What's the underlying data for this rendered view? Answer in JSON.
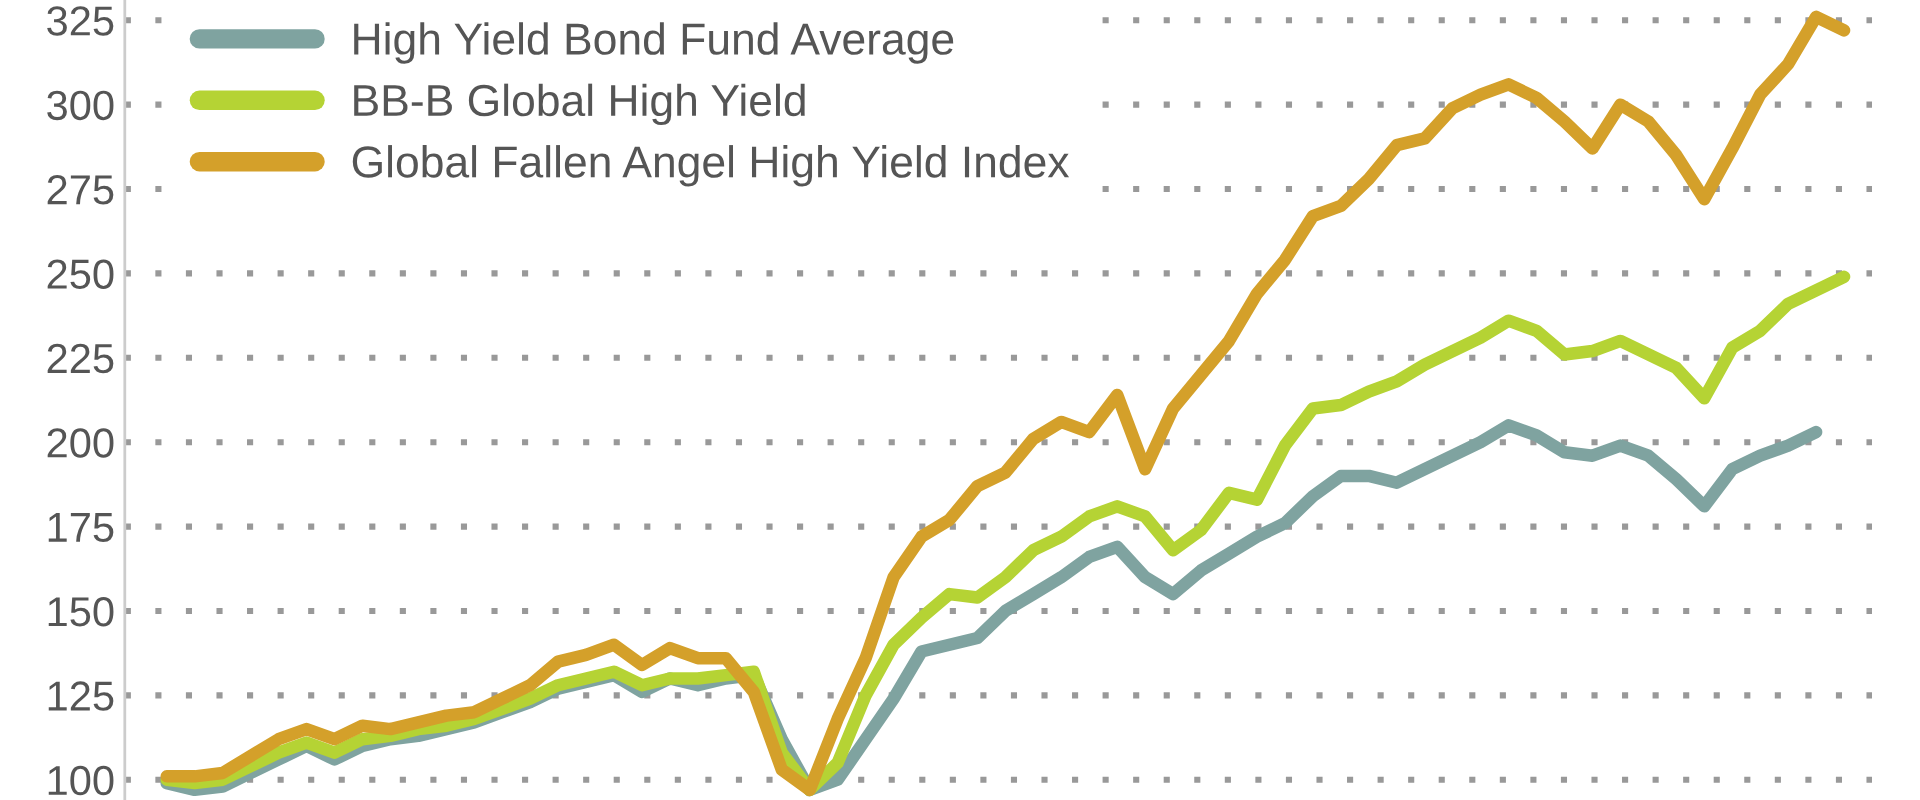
{
  "chart_data": {
    "type": "line",
    "categories": [
      null,
      null,
      null,
      null,
      null,
      null,
      null,
      null,
      null,
      null,
      null,
      null,
      null,
      null,
      null,
      null,
      null,
      null,
      null,
      null,
      null,
      null,
      null,
      null,
      null,
      null,
      null,
      null,
      null,
      null,
      null,
      null,
      null,
      null,
      null,
      null,
      null,
      null,
      null,
      null,
      null,
      null,
      null,
      null,
      null,
      null,
      null,
      null,
      null,
      null,
      null,
      null,
      null,
      null,
      null,
      null,
      null,
      null,
      null,
      null,
      null
    ],
    "series": [
      {
        "name": "High Yield Bond Fund Average",
        "color": "#7fa3a0",
        "values": [
          99,
          97,
          98,
          102,
          106,
          110,
          106,
          110,
          112,
          113,
          115,
          117,
          120,
          123,
          127,
          129,
          131,
          126,
          130,
          128,
          130,
          131,
          112,
          97,
          100,
          112,
          124,
          138,
          140,
          142,
          150,
          155,
          160,
          166,
          169,
          160,
          155,
          162,
          167,
          172,
          176,
          184,
          190,
          190,
          188,
          192,
          196,
          200,
          205,
          202,
          197,
          196,
          199,
          196,
          189,
          181,
          192,
          196,
          199,
          203,
          null
        ]
      },
      {
        "name": "BB-B Global High Yield",
        "color": "#b5d334",
        "values": [
          100,
          99,
          100,
          104,
          108,
          111,
          108,
          112,
          113,
          115,
          116,
          118,
          121,
          124,
          128,
          130,
          132,
          128,
          130,
          130,
          131,
          132,
          108,
          97,
          105,
          125,
          140,
          148,
          155,
          154,
          160,
          168,
          172,
          178,
          181,
          178,
          168,
          174,
          185,
          183,
          199,
          210,
          211,
          215,
          218,
          223,
          227,
          231,
          236,
          233,
          226,
          227,
          230,
          226,
          222,
          213,
          228,
          233,
          241,
          245,
          249
        ]
      },
      {
        "name": "Global Fallen Angel High Yield Index",
        "color": "#d4a02a",
        "values": [
          101,
          101,
          102,
          107,
          112,
          115,
          112,
          116,
          115,
          117,
          119,
          120,
          124,
          128,
          135,
          137,
          140,
          134,
          139,
          136,
          136,
          126,
          103,
          97,
          118,
          136,
          160,
          172,
          177,
          187,
          191,
          201,
          206,
          203,
          214,
          192,
          210,
          220,
          230,
          244,
          254,
          267,
          270,
          278,
          288,
          290,
          299,
          303,
          306,
          302,
          295,
          287,
          300,
          295,
          285,
          272,
          287,
          303,
          312,
          326,
          322
        ]
      }
    ],
    "ylim": [
      94,
      331
    ],
    "yticks": [
      100,
      125,
      150,
      175,
      200,
      225,
      250,
      275,
      300,
      325
    ],
    "grid": "y",
    "legend": "top left",
    "tick_labels": "y",
    "line_style": "solid",
    "marker": "none"
  }
}
